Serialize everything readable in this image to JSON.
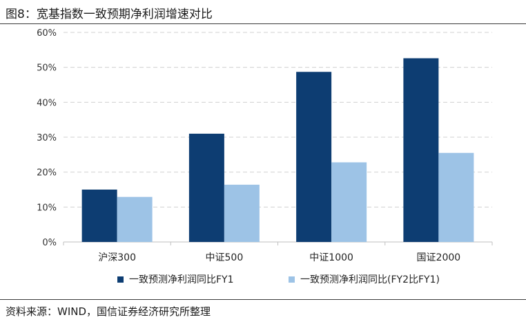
{
  "header": {
    "title": "图8：宽基指数一致预期净利润增速对比"
  },
  "footer": {
    "source": "资料来源：WIND，国信证券经济研究所整理"
  },
  "colors": {
    "series1": "#0d3d72",
    "series2": "#9dc3e6",
    "grid": "#d0d0d0",
    "axis": "#bfbfbf"
  },
  "chart_data": {
    "type": "bar",
    "title": "图8：宽基指数一致预期净利润增速对比",
    "xlabel": "",
    "ylabel": "",
    "categories": [
      "沪深300",
      "中证500",
      "中证1000",
      "国证2000"
    ],
    "series": [
      {
        "name": "一致预测净利润同比FY1",
        "values": [
          15.0,
          31.0,
          48.7,
          52.6
        ]
      },
      {
        "name": "一致预测净利润同比(FY2比FY1)",
        "values": [
          12.9,
          16.4,
          22.8,
          25.5
        ]
      }
    ],
    "ylim": [
      0,
      60
    ],
    "yticks": [
      "0%",
      "10%",
      "20%",
      "30%",
      "40%",
      "50%",
      "60%"
    ],
    "grid": true,
    "legend_position": "bottom"
  }
}
